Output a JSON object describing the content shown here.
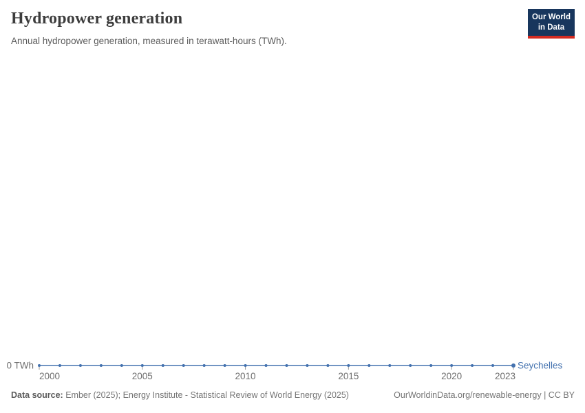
{
  "header": {
    "title": "Hydropower generation",
    "subtitle": "Annual hydropower generation, measured in terawatt-hours (TWh).",
    "logo": {
      "line1": "Our World",
      "line2": "in Data"
    }
  },
  "chart_data": {
    "type": "line",
    "title": "Hydropower generation",
    "unit": "TWh",
    "x": [
      2000,
      2001,
      2002,
      2003,
      2004,
      2005,
      2006,
      2007,
      2008,
      2009,
      2010,
      2011,
      2012,
      2013,
      2014,
      2015,
      2016,
      2017,
      2018,
      2019,
      2020,
      2021,
      2022,
      2023
    ],
    "series": [
      {
        "name": "Seychelles",
        "color": "#4472af",
        "values": [
          0,
          0,
          0,
          0,
          0,
          0,
          0,
          0,
          0,
          0,
          0,
          0,
          0,
          0,
          0,
          0,
          0,
          0,
          0,
          0,
          0,
          0,
          0,
          0
        ]
      }
    ],
    "x_ticks": [
      2000,
      2005,
      2010,
      2015,
      2020,
      2023
    ],
    "y_baseline_label": "0 TWh",
    "xlabel": "",
    "ylabel": "",
    "grid": false,
    "legend_position": "end-of-line"
  },
  "footer": {
    "source_label": "Data source:",
    "source_text": " Ember (2025); Energy Institute - Statistical Review of World Energy (2025)",
    "attribution": "OurWorldinData.org/renewable-energy | CC BY"
  },
  "colors": {
    "line": "#4472af",
    "axis_text": "#6e6e6e",
    "tick": "#989898",
    "logo_bg": "#18365d",
    "logo_accent": "#d42b21"
  }
}
